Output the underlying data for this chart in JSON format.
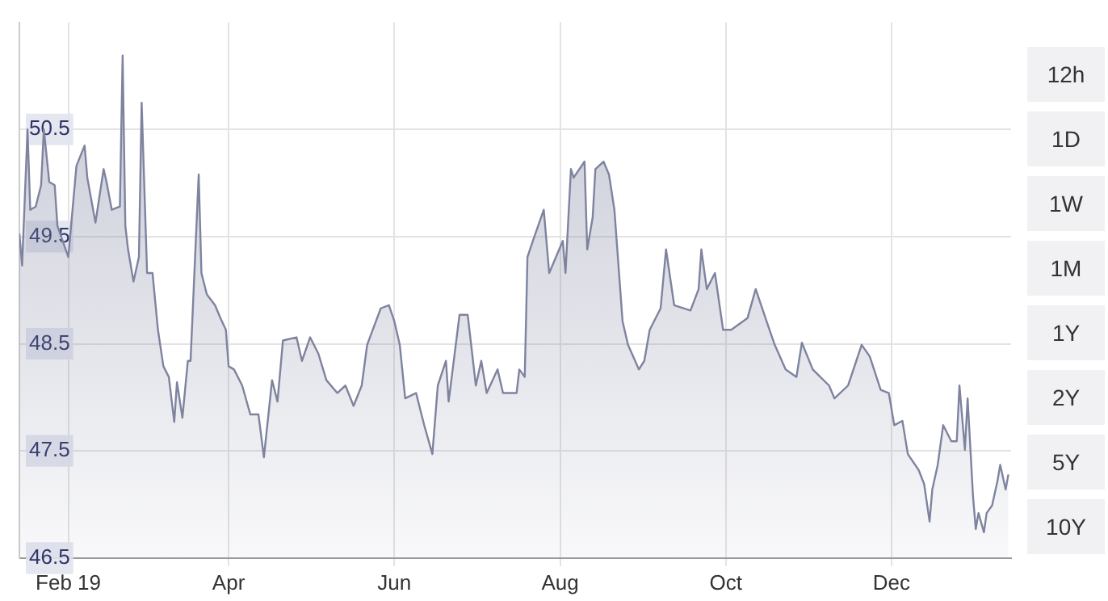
{
  "chart_data": {
    "type": "area",
    "color": "#7e839f",
    "grid": true,
    "marker": "none",
    "line_style": "solid",
    "xlim": [
      "2019-01-14",
      "2020-01-14"
    ],
    "xticks": [
      {
        "value": "2019-02-01",
        "label": "Feb 19"
      },
      {
        "value": "2019-04-01",
        "label": "Apr"
      },
      {
        "value": "2019-06-01",
        "label": "Jun"
      },
      {
        "value": "2019-08-01",
        "label": "Aug"
      },
      {
        "value": "2019-10-01",
        "label": "Oct"
      },
      {
        "value": "2019-12-01",
        "label": "Dec"
      }
    ],
    "ylim": [
      46.5,
      51.5
    ],
    "yticks": [
      46.5,
      47.5,
      48.5,
      49.5,
      50.5
    ],
    "annotations": [
      "12h",
      "1D",
      "1W",
      "1M",
      "1Y",
      "2Y",
      "5Y",
      "10Y"
    ],
    "x": [
      "2019-01-14",
      "2019-01-15",
      "2019-01-17",
      "2019-01-18",
      "2019-01-20",
      "2019-01-22",
      "2019-01-23",
      "2019-01-25",
      "2019-01-27",
      "2019-01-28",
      "2019-02-01",
      "2019-02-04",
      "2019-02-07",
      "2019-02-08",
      "2019-02-11",
      "2019-02-14",
      "2019-02-15",
      "2019-02-17",
      "2019-02-20",
      "2019-02-21",
      "2019-02-22",
      "2019-02-23",
      "2019-02-25",
      "2019-02-27",
      "2019-02-28",
      "2019-03-02",
      "2019-03-04",
      "2019-03-06",
      "2019-03-08",
      "2019-03-10",
      "2019-03-12",
      "2019-03-13",
      "2019-03-15",
      "2019-03-17",
      "2019-03-18",
      "2019-03-21",
      "2019-03-22",
      "2019-03-24",
      "2019-03-27",
      "2019-03-29",
      "2019-03-31",
      "2019-04-01",
      "2019-04-03",
      "2019-04-06",
      "2019-04-09",
      "2019-04-12",
      "2019-04-14",
      "2019-04-17",
      "2019-04-19",
      "2019-04-21",
      "2019-04-26",
      "2019-04-28",
      "2019-05-01",
      "2019-05-04",
      "2019-05-07",
      "2019-05-11",
      "2019-05-14",
      "2019-05-17",
      "2019-05-20",
      "2019-05-22",
      "2019-05-27",
      "2019-05-30",
      "2019-06-01",
      "2019-06-03",
      "2019-06-05",
      "2019-06-09",
      "2019-06-12",
      "2019-06-15",
      "2019-06-17",
      "2019-06-20",
      "2019-06-21",
      "2019-06-25",
      "2019-06-28",
      "2019-07-01",
      "2019-07-03",
      "2019-07-05",
      "2019-07-09",
      "2019-07-11",
      "2019-07-16",
      "2019-07-17",
      "2019-07-19",
      "2019-07-20",
      "2019-07-22",
      "2019-07-26",
      "2019-07-28",
      "2019-08-02",
      "2019-08-03",
      "2019-08-05",
      "2019-08-06",
      "2019-08-10",
      "2019-08-11",
      "2019-08-13",
      "2019-08-14",
      "2019-08-17",
      "2019-08-19",
      "2019-08-21",
      "2019-08-24",
      "2019-08-26",
      "2019-08-30",
      "2019-09-01",
      "2019-09-03",
      "2019-09-07",
      "2019-09-09",
      "2019-09-12",
      "2019-09-18",
      "2019-09-21",
      "2019-09-22",
      "2019-09-24",
      "2019-09-27",
      "2019-09-30",
      "2019-10-03",
      "2019-10-09",
      "2019-10-12",
      "2019-10-16",
      "2019-10-19",
      "2019-10-23",
      "2019-10-27",
      "2019-10-29",
      "2019-11-02",
      "2019-11-08",
      "2019-11-10",
      "2019-11-15",
      "2019-11-20",
      "2019-11-23",
      "2019-11-27",
      "2019-11-30",
      "2019-12-02",
      "2019-12-05",
      "2019-12-07",
      "2019-12-11",
      "2019-12-13",
      "2019-12-15",
      "2019-12-16",
      "2019-12-18",
      "2019-12-20",
      "2019-12-23",
      "2019-12-25",
      "2019-12-26",
      "2019-12-28",
      "2019-12-29",
      "2019-12-31",
      "2020-01-01",
      "2020-01-02",
      "2020-01-04",
      "2020-01-05",
      "2020-01-07",
      "2020-01-09",
      "2020-01-10",
      "2020-01-12",
      "2020-01-13"
    ],
    "values": [
      49.53,
      49.23,
      50.5,
      49.75,
      49.78,
      49.98,
      50.5,
      50.01,
      49.98,
      49.6,
      49.31,
      50.16,
      50.35,
      50.05,
      49.63,
      50.13,
      50.02,
      49.75,
      49.78,
      51.19,
      49.6,
      49.38,
      49.08,
      49.31,
      50.75,
      49.16,
      49.16,
      48.63,
      48.29,
      48.19,
      47.77,
      48.14,
      47.81,
      48.34,
      48.34,
      50.08,
      49.16,
      48.96,
      48.86,
      48.74,
      48.63,
      48.29,
      48.26,
      48.11,
      47.84,
      47.84,
      47.44,
      48.16,
      47.96,
      48.53,
      48.56,
      48.34,
      48.56,
      48.41,
      48.16,
      48.04,
      48.11,
      47.92,
      48.11,
      48.49,
      48.83,
      48.86,
      48.71,
      48.49,
      47.99,
      48.04,
      47.74,
      47.47,
      48.11,
      48.34,
      47.96,
      48.77,
      48.77,
      48.11,
      48.34,
      48.04,
      48.26,
      48.04,
      48.04,
      48.26,
      48.19,
      49.31,
      49.46,
      49.75,
      49.16,
      49.46,
      49.16,
      50.13,
      50.05,
      50.2,
      49.38,
      49.68,
      50.13,
      50.2,
      50.08,
      49.75,
      48.71,
      48.49,
      48.26,
      48.34,
      48.63,
      48.83,
      49.38,
      48.86,
      48.81,
      49.01,
      49.38,
      49.01,
      49.16,
      48.63,
      48.63,
      48.74,
      49.01,
      48.71,
      48.49,
      48.26,
      48.19,
      48.51,
      48.26,
      48.11,
      47.99,
      48.11,
      48.49,
      48.38,
      48.07,
      48.04,
      47.74,
      47.78,
      47.47,
      47.32,
      47.19,
      46.84,
      47.14,
      47.37,
      47.74,
      47.59,
      47.59,
      48.11,
      47.51,
      47.99,
      47.07,
      46.77,
      46.92,
      46.74,
      46.92,
      46.99,
      47.22,
      47.37,
      47.14,
      47.28
    ]
  }
}
